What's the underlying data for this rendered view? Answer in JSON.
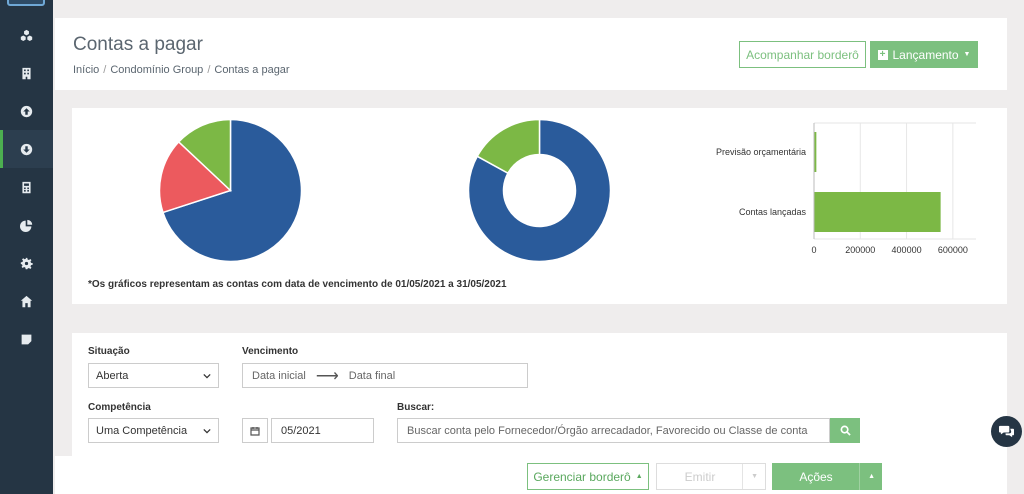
{
  "sidebar": {
    "items": [
      {
        "icon": "cubes-icon"
      },
      {
        "icon": "building-icon"
      },
      {
        "icon": "arrow-up-circle-icon"
      },
      {
        "icon": "arrow-down-circle-icon",
        "active": true
      },
      {
        "icon": "calculator-icon"
      },
      {
        "icon": "pie-chart-icon"
      },
      {
        "icon": "gear-icon"
      },
      {
        "icon": "home-icon"
      },
      {
        "icon": "note-icon"
      }
    ]
  },
  "header": {
    "title": "Contas a pagar",
    "breadcrumb": [
      "Início",
      "Condomínio Group",
      "Contas a pagar"
    ],
    "btn_track": "Acompanhar borderô",
    "btn_launch": "Lançamento"
  },
  "colors": {
    "blue": "#2a5b9b",
    "green": "#7cb845",
    "red": "#ec5a5e",
    "accent": "#7cc07f",
    "sidebar": "#253544"
  },
  "chart_data": [
    {
      "type": "pie",
      "values": [
        70,
        17,
        13
      ],
      "colors": [
        "#2a5b9b",
        "#ec5a5e",
        "#7cb845"
      ]
    },
    {
      "type": "pie",
      "donut": true,
      "values": [
        83,
        17
      ],
      "colors": [
        "#2a5b9b",
        "#7cb845"
      ]
    },
    {
      "type": "bar",
      "orientation": "horizontal",
      "categories": [
        "Previsão orçamentária",
        "Contas lançadas"
      ],
      "values": [
        8000,
        545000
      ],
      "xlim": [
        0,
        700000
      ],
      "ticks": [
        "0",
        "200000",
        "400000",
        "600000"
      ],
      "color": "#7cb845",
      "grid": true
    }
  ],
  "charts_note": "*Os gráficos representam as contas com data de vencimento de 01/05/2021 a 31/05/2021",
  "filters": {
    "situacao_label": "Situação",
    "situacao_value": "Aberta",
    "vencimento_label": "Vencimento",
    "date_start_placeholder": "Data inicial",
    "date_end_placeholder": "Data final",
    "competencia_label": "Competência",
    "competencia_value": "Uma Competência",
    "month_value": "05/2021",
    "buscar_label": "Buscar:",
    "search_placeholder": "Buscar conta pelo Fornecedor/Órgão arrecadador, Favorecido ou Classe de conta"
  },
  "bottom_bar": {
    "manage_border": "Gerenciar borderô",
    "emit": "Emitir",
    "actions": "Ações"
  }
}
